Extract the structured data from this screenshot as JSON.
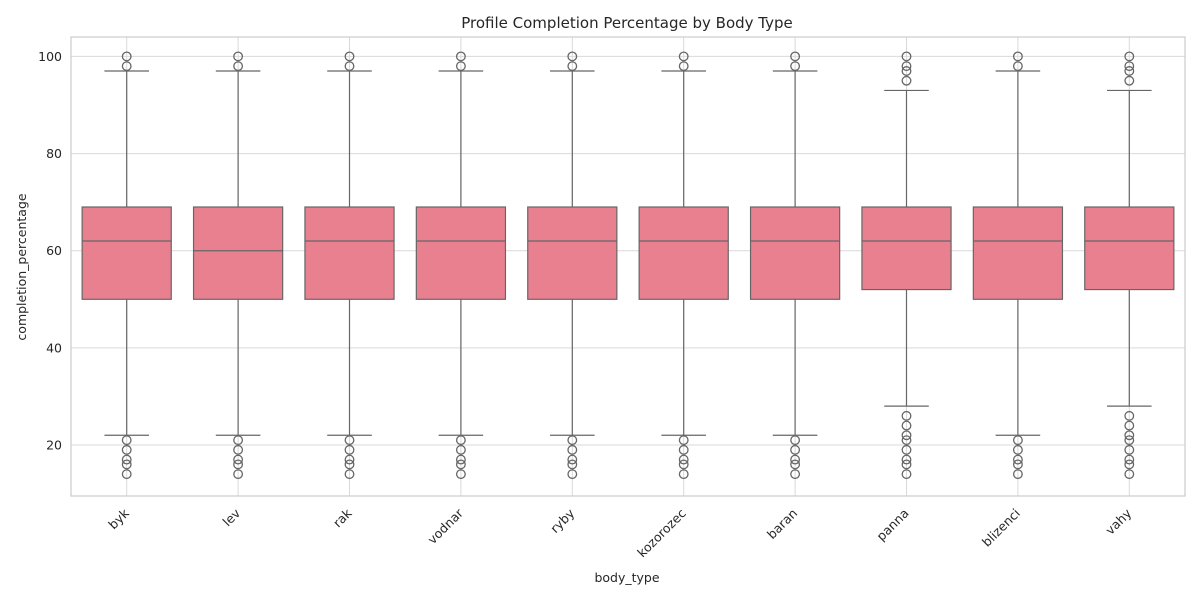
{
  "chart_data": {
    "type": "boxplot",
    "title": "Profile Completion Percentage by Body Type",
    "xlabel": "body_type",
    "ylabel": "completion_percentage",
    "ylim": [
      9.5,
      104
    ],
    "yticks": [
      20,
      40,
      60,
      80,
      100
    ],
    "grid": true,
    "box_color": "#e88090",
    "line_color": "#666666",
    "categories": [
      "byk",
      "lev",
      "rak",
      "vodnar",
      "ryby",
      "kozorozec",
      "baran",
      "panna",
      "blizenci",
      "vahy"
    ],
    "boxes": [
      {
        "category": "byk",
        "whisker_low": 22,
        "q1": 50,
        "median": 62,
        "q3": 69,
        "whisker_high": 97,
        "fliers": [
          14,
          16,
          17,
          19,
          21,
          98,
          100
        ]
      },
      {
        "category": "lev",
        "whisker_low": 22,
        "q1": 50,
        "median": 60,
        "q3": 69,
        "whisker_high": 97,
        "fliers": [
          14,
          16,
          17,
          19,
          21,
          98,
          100
        ]
      },
      {
        "category": "rak",
        "whisker_low": 22,
        "q1": 50,
        "median": 62,
        "q3": 69,
        "whisker_high": 97,
        "fliers": [
          14,
          16,
          17,
          19,
          21,
          98,
          100
        ]
      },
      {
        "category": "vodnar",
        "whisker_low": 22,
        "q1": 50,
        "median": 62,
        "q3": 69,
        "whisker_high": 97,
        "fliers": [
          14,
          16,
          17,
          19,
          21,
          98,
          100
        ]
      },
      {
        "category": "ryby",
        "whisker_low": 22,
        "q1": 50,
        "median": 62,
        "q3": 69,
        "whisker_high": 97,
        "fliers": [
          14,
          16,
          17,
          19,
          21,
          98,
          100
        ]
      },
      {
        "category": "kozorozec",
        "whisker_low": 22,
        "q1": 50,
        "median": 62,
        "q3": 69,
        "whisker_high": 97,
        "fliers": [
          14,
          16,
          17,
          19,
          21,
          98,
          100
        ]
      },
      {
        "category": "baran",
        "whisker_low": 22,
        "q1": 50,
        "median": 62,
        "q3": 69,
        "whisker_high": 97,
        "fliers": [
          14,
          16,
          17,
          19,
          21,
          98,
          100
        ]
      },
      {
        "category": "panna",
        "whisker_low": 28,
        "q1": 52,
        "median": 62,
        "q3": 69,
        "whisker_high": 93,
        "fliers": [
          14,
          16,
          17,
          19,
          21,
          22,
          24,
          26,
          95,
          97,
          98,
          100
        ]
      },
      {
        "category": "blizenci",
        "whisker_low": 22,
        "q1": 50,
        "median": 62,
        "q3": 69,
        "whisker_high": 97,
        "fliers": [
          14,
          16,
          17,
          19,
          21,
          98,
          100
        ]
      },
      {
        "category": "vahy",
        "whisker_low": 28,
        "q1": 52,
        "median": 62,
        "q3": 69,
        "whisker_high": 93,
        "fliers": [
          14,
          16,
          17,
          19,
          21,
          22,
          24,
          26,
          95,
          97,
          98,
          100
        ]
      }
    ]
  }
}
